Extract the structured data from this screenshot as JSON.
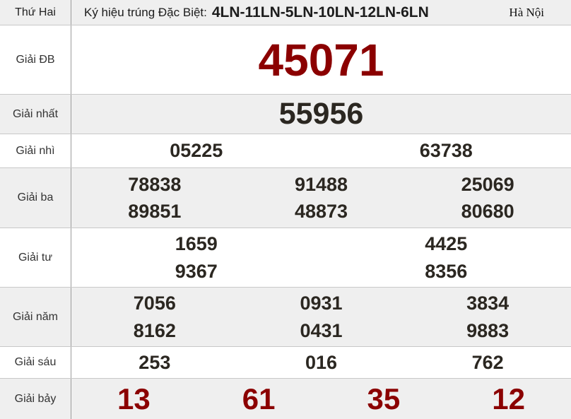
{
  "header": {
    "day": "Thứ Hai",
    "symbol_label": "Ký hiệu trúng Đặc Biệt:",
    "symbol_value": "4LN-11LN-5LN-10LN-12LN-6LN",
    "region": "Hà Nội"
  },
  "colors": {
    "special_red": "#8b0000",
    "number_black": "#2b2721",
    "alt_row_bg": "#efefef",
    "row_border": "#c8c8c8",
    "column_border": "#9c9c9c"
  },
  "prizes": [
    {
      "label": "Giải ĐB",
      "numbers": [
        "45071"
      ]
    },
    {
      "label": "Giải nhất",
      "numbers": [
        "55956"
      ]
    },
    {
      "label": "Giải nhì",
      "numbers": [
        "05225",
        "63738"
      ]
    },
    {
      "label": "Giải ba",
      "numbers": [
        "78838",
        "91488",
        "25069",
        "89851",
        "48873",
        "80680"
      ]
    },
    {
      "label": "Giải tư",
      "numbers": [
        "1659",
        "4425",
        "9367",
        "8356"
      ]
    },
    {
      "label": "Giải năm",
      "numbers": [
        "7056",
        "0931",
        "3834",
        "8162",
        "0431",
        "9883"
      ]
    },
    {
      "label": "Giải sáu",
      "numbers": [
        "253",
        "016",
        "762"
      ]
    },
    {
      "label": "Giải bảy",
      "numbers": [
        "13",
        "61",
        "35",
        "12"
      ]
    }
  ]
}
